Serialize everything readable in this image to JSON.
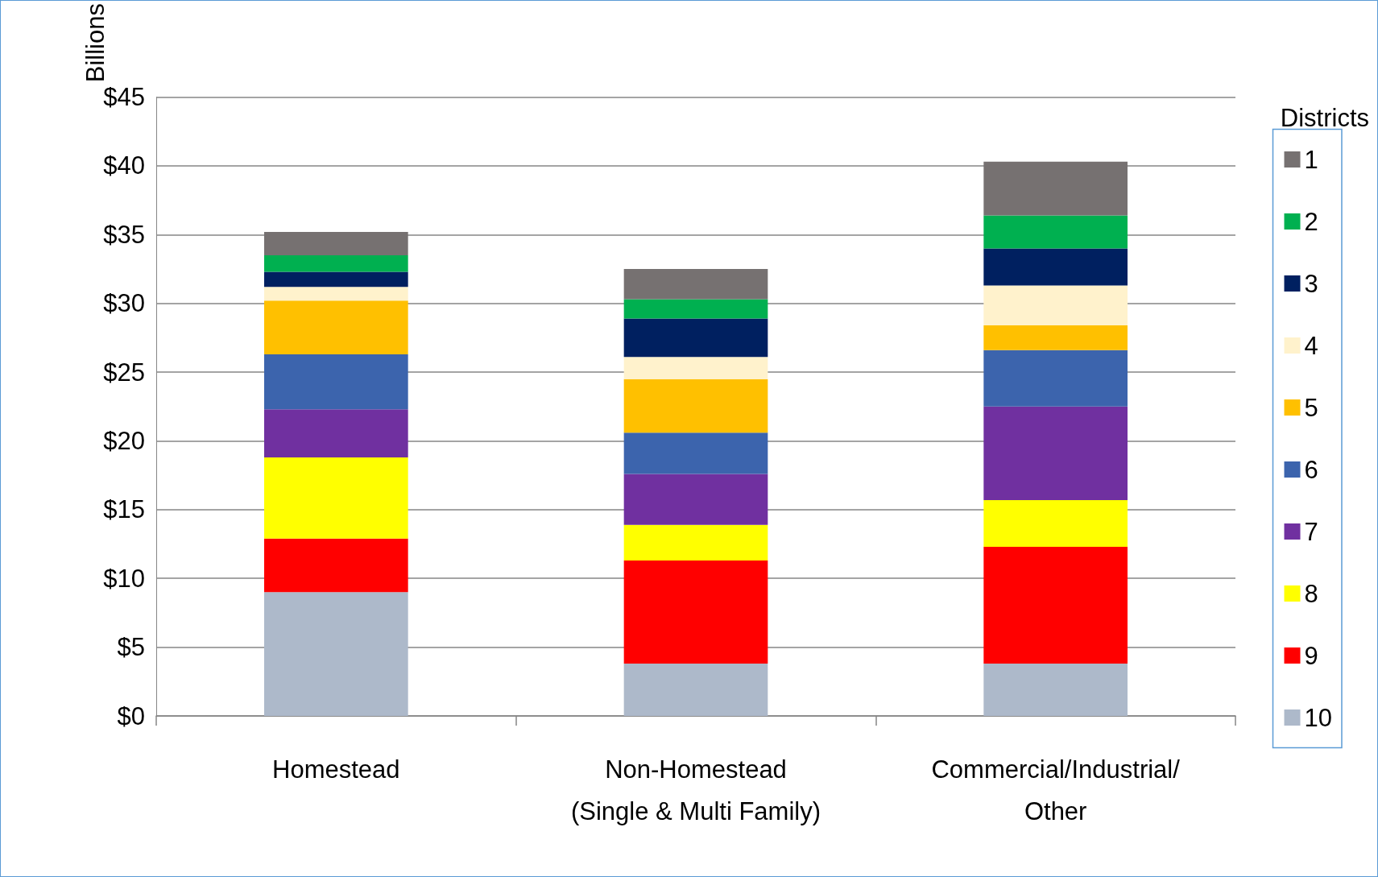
{
  "chart_data": {
    "type": "bar",
    "stacked": true,
    "ylabel": "Billions",
    "legend_title": "Districts",
    "legend": "right",
    "grid": "y",
    "categories": [
      "Homestead",
      "Non-Homestead\n(Single & Multi Family)",
      "Commercial/Industrial/\nOther"
    ],
    "ylim": [
      0,
      45
    ],
    "yticks": [
      {
        "value": 0,
        "label": "$0"
      },
      {
        "value": 5,
        "label": "$5"
      },
      {
        "value": 10,
        "label": "$10"
      },
      {
        "value": 15,
        "label": "$15"
      },
      {
        "value": 20,
        "label": "$20"
      },
      {
        "value": 25,
        "label": "$25"
      },
      {
        "value": 30,
        "label": "$30"
      },
      {
        "value": 35,
        "label": "$35"
      },
      {
        "value": 40,
        "label": "$40"
      },
      {
        "value": 45,
        "label": "$45"
      }
    ],
    "series": [
      {
        "name": "10",
        "color": "#adb9ca",
        "values": [
          9.0,
          3.8,
          3.8
        ]
      },
      {
        "name": "9",
        "color": "#ff0000",
        "values": [
          3.9,
          7.5,
          8.5
        ]
      },
      {
        "name": "8",
        "color": "#ffff00",
        "values": [
          5.9,
          2.6,
          3.4
        ]
      },
      {
        "name": "7",
        "color": "#7030a0",
        "values": [
          3.5,
          3.7,
          6.8
        ]
      },
      {
        "name": "6",
        "color": "#3c64ad",
        "values": [
          4.0,
          3.0,
          4.1
        ]
      },
      {
        "name": "5",
        "color": "#ffc000",
        "values": [
          3.9,
          3.9,
          1.8
        ]
      },
      {
        "name": "4",
        "color": "#fff2cc",
        "values": [
          1.0,
          1.6,
          2.9
        ]
      },
      {
        "name": "3",
        "color": "#002060",
        "values": [
          1.1,
          2.8,
          2.7
        ]
      },
      {
        "name": "2",
        "color": "#00b050",
        "values": [
          1.2,
          1.4,
          2.4
        ]
      },
      {
        "name": "1",
        "color": "#767171",
        "values": [
          1.7,
          2.2,
          3.9
        ]
      }
    ]
  }
}
